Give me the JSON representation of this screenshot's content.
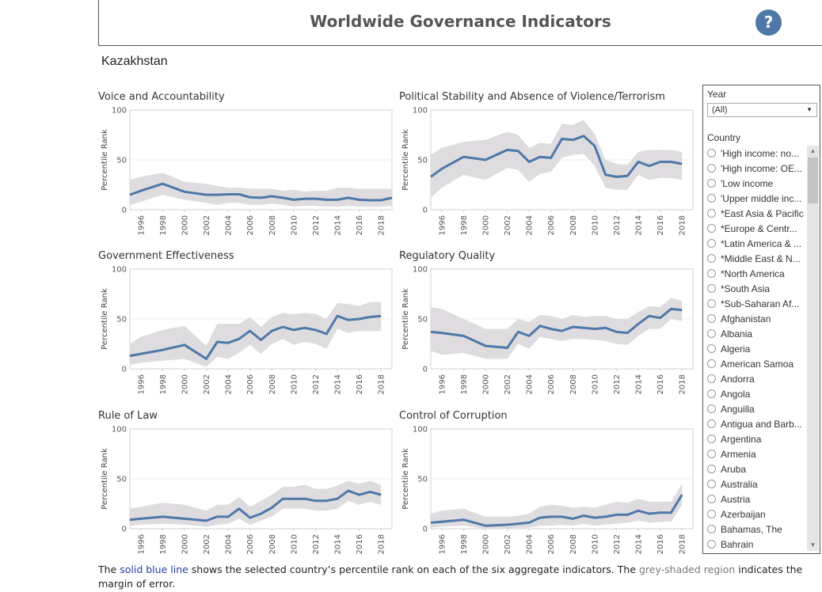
{
  "header": {
    "title": "Worldwide Governance Indicators",
    "help_label": "?"
  },
  "country": "Kazakhstan",
  "colors": {
    "line": "#4e78a8",
    "band": "#dedcde",
    "axis": "#d0d0d0",
    "tick": "#555555"
  },
  "filters": {
    "year_label": "Year",
    "year_value": "(All)",
    "country_label": "Country",
    "countries": [
      "'High income: no...",
      "'High income: OE...",
      "'Low income",
      "'Upper middle inc...",
      "*East Asia & Pacific",
      "*Europe & Centr...",
      "*Latin America & ...",
      "*Middle East & N...",
      "*North America",
      "*South Asia",
      "*Sub-Saharan Af...",
      "Afghanistan",
      "Albania",
      "Algeria",
      "American Samoa",
      "Andorra",
      "Angola",
      "Anguilla",
      "Antigua and Barb...",
      "Argentina",
      "Armenia",
      "Aruba",
      "Australia",
      "Austria",
      "Azerbaijan",
      "Bahamas, The",
      "Bahrain"
    ]
  },
  "footnote": {
    "part1": "The ",
    "blue": "solid blue line",
    "part2": " shows the selected country’s percentile rank on each of the six aggregate indicators.  The ",
    "grey": "grey-shaded region",
    "part3": " indicates the margin of error."
  },
  "chart_data": [
    {
      "type": "line",
      "title": "Voice and Accountability",
      "ylabel": "Percentile Rank",
      "ylim": [
        0,
        100
      ],
      "yticks": [
        0,
        50,
        100
      ],
      "xticks": [
        "1996",
        "1998",
        "2000",
        "2002",
        "2004",
        "2006",
        "2008",
        "2010",
        "2012",
        "2014",
        "2016",
        "2018"
      ],
      "x": [
        1995,
        1996,
        1998,
        2000,
        2002,
        2003,
        2004,
        2005,
        2006,
        2007,
        2008,
        2009,
        2010,
        2011,
        2012,
        2013,
        2014,
        2015,
        2016,
        2017,
        2018,
        2019
      ],
      "values": [
        15,
        19,
        26,
        18,
        15,
        15,
        15.5,
        15.5,
        12.5,
        12,
        13.5,
        12,
        10,
        11,
        11,
        10,
        10,
        12,
        10,
        9.5,
        9.5,
        12
      ],
      "upper": [
        30,
        33,
        37,
        28,
        26,
        24,
        22,
        22,
        21,
        21,
        21,
        19,
        20,
        18,
        19,
        19,
        22,
        22,
        21,
        21,
        21,
        21
      ],
      "lower": [
        5,
        8,
        15,
        10,
        7,
        5,
        7,
        7,
        5,
        5,
        6,
        5,
        3,
        4,
        4,
        3,
        3,
        4,
        3,
        3,
        3,
        4
      ]
    },
    {
      "type": "line",
      "title": "Political Stability and Absence of Violence/Terrorism",
      "ylabel": "Percentile Rank",
      "ylim": [
        0,
        100
      ],
      "yticks": [
        0,
        50,
        100
      ],
      "xticks": [
        "1996",
        "1998",
        "2000",
        "2002",
        "2004",
        "2006",
        "2008",
        "2010",
        "2012",
        "2014",
        "2016",
        "2018"
      ],
      "x": [
        1995,
        1996,
        1998,
        2000,
        2002,
        2003,
        2004,
        2005,
        2006,
        2007,
        2008,
        2009,
        2010,
        2011,
        2012,
        2013,
        2014,
        2015,
        2016,
        2017,
        2018
      ],
      "values": [
        33,
        41,
        53,
        50,
        60,
        59,
        48,
        53,
        52,
        71,
        70,
        74,
        64,
        35,
        33,
        34,
        48,
        44,
        48,
        48,
        46
      ],
      "upper": [
        55,
        62,
        68,
        70,
        78,
        75,
        62,
        67,
        66,
        86,
        85,
        90,
        76,
        50,
        46,
        45,
        58,
        60,
        60,
        60,
        58
      ],
      "lower": [
        12,
        22,
        35,
        30,
        42,
        40,
        28,
        36,
        38,
        52,
        55,
        56,
        44,
        22,
        20,
        20,
        35,
        30,
        32,
        32,
        30
      ]
    },
    {
      "type": "line",
      "title": "Government Effectiveness",
      "ylabel": "Percentile Rank",
      "ylim": [
        0,
        100
      ],
      "yticks": [
        0,
        50,
        100
      ],
      "xticks": [
        "1996",
        "1998",
        "2000",
        "2002",
        "2004",
        "2006",
        "2008",
        "2010",
        "2012",
        "2014",
        "2016",
        "2018"
      ],
      "x": [
        1995,
        1996,
        1998,
        2000,
        2002,
        2003,
        2004,
        2005,
        2006,
        2007,
        2008,
        2009,
        2010,
        2011,
        2012,
        2013,
        2014,
        2015,
        2016,
        2017,
        2018
      ],
      "values": [
        13,
        15,
        19,
        24,
        10,
        27,
        26,
        30,
        38,
        29,
        38,
        42,
        39,
        41,
        39,
        35,
        53,
        49,
        50,
        52,
        53
      ],
      "upper": [
        25,
        32,
        39,
        43,
        23,
        45,
        45,
        45,
        52,
        42,
        52,
        56,
        55,
        56,
        55,
        50,
        66,
        65,
        63,
        67,
        67
      ],
      "lower": [
        4,
        6,
        8,
        10,
        2,
        12,
        10,
        16,
        24,
        15,
        25,
        30,
        24,
        27,
        25,
        20,
        40,
        36,
        38,
        38,
        38
      ]
    },
    {
      "type": "line",
      "title": "Regulatory Quality",
      "ylabel": "Percentile Rank",
      "ylim": [
        0,
        100
      ],
      "yticks": [
        0,
        50,
        100
      ],
      "xticks": [
        "1996",
        "1998",
        "2000",
        "2002",
        "2004",
        "2006",
        "2008",
        "2010",
        "2012",
        "2014",
        "2016",
        "2018"
      ],
      "x": [
        1995,
        1996,
        1998,
        2000,
        2002,
        2003,
        2004,
        2005,
        2006,
        2007,
        2008,
        2009,
        2010,
        2011,
        2012,
        2013,
        2014,
        2015,
        2016,
        2017,
        2018
      ],
      "values": [
        37,
        36,
        33,
        23,
        21,
        37,
        33,
        43,
        40,
        38,
        42,
        41,
        40,
        41,
        37,
        36,
        45,
        53,
        51,
        60,
        59
      ],
      "upper": [
        62,
        60,
        50,
        40,
        40,
        50,
        47,
        54,
        53,
        50,
        54,
        52,
        53,
        53,
        50,
        50,
        57,
        63,
        62,
        71,
        68
      ],
      "lower": [
        18,
        14,
        16,
        10,
        10,
        25,
        20,
        32,
        30,
        28,
        30,
        30,
        29,
        28,
        25,
        24,
        33,
        40,
        40,
        50,
        48
      ]
    },
    {
      "type": "line",
      "title": "Rule of Law",
      "ylabel": "Percentile Rank",
      "ylim": [
        0,
        100
      ],
      "yticks": [
        0,
        50,
        100
      ],
      "xticks": [
        "1996",
        "1998",
        "2000",
        "2002",
        "2004",
        "2006",
        "2008",
        "2010",
        "2012",
        "2014",
        "2016",
        "2018"
      ],
      "x": [
        1995,
        1996,
        1998,
        2000,
        2002,
        2003,
        2004,
        2005,
        2006,
        2007,
        2008,
        2009,
        2010,
        2011,
        2012,
        2013,
        2014,
        2015,
        2016,
        2017,
        2018
      ],
      "values": [
        9,
        10,
        12,
        10,
        8,
        12,
        12,
        20,
        11,
        15,
        21,
        30,
        30,
        30,
        28,
        28,
        30,
        38,
        34,
        37,
        34
      ],
      "upper": [
        20,
        22,
        26,
        24,
        18,
        24,
        24,
        32,
        22,
        28,
        34,
        42,
        42,
        44,
        40,
        40,
        43,
        48,
        45,
        48,
        44
      ],
      "lower": [
        3,
        4,
        5,
        4,
        2,
        4,
        5,
        10,
        4,
        8,
        12,
        20,
        20,
        20,
        18,
        18,
        20,
        28,
        24,
        27,
        24
      ]
    },
    {
      "type": "line",
      "title": "Control of Corruption",
      "ylabel": "Percentile Rank",
      "ylim": [
        0,
        100
      ],
      "yticks": [
        0,
        50,
        100
      ],
      "xticks": [
        "1996",
        "1998",
        "2000",
        "2002",
        "2004",
        "2006",
        "2008",
        "2010",
        "2012",
        "2014",
        "2016",
        "2018"
      ],
      "x": [
        1995,
        1996,
        1998,
        2000,
        2002,
        2003,
        2004,
        2005,
        2006,
        2007,
        2008,
        2009,
        2010,
        2011,
        2012,
        2013,
        2014,
        2015,
        2016,
        2017,
        2018
      ],
      "values": [
        6,
        7,
        9,
        3,
        4,
        5,
        6,
        11,
        12,
        12,
        10,
        13,
        11,
        12,
        14,
        14,
        18,
        15,
        16,
        16,
        34
      ],
      "upper": [
        15,
        18,
        20,
        12,
        12,
        13,
        15,
        22,
        24,
        23,
        21,
        22,
        21,
        24,
        27,
        26,
        30,
        27,
        27,
        27,
        45
      ],
      "lower": [
        1,
        2,
        3,
        0,
        0,
        1,
        1,
        3,
        3,
        4,
        3,
        5,
        3,
        4,
        5,
        6,
        8,
        6,
        7,
        7,
        24
      ]
    }
  ]
}
